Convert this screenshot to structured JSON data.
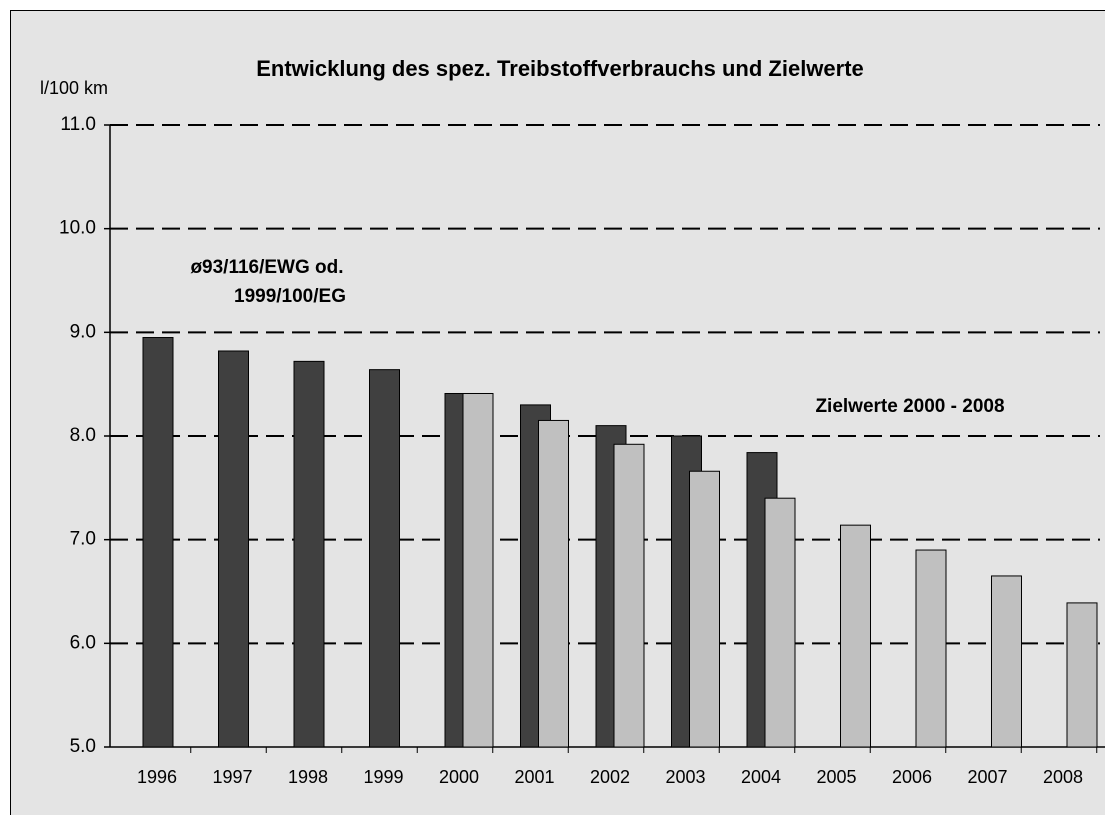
{
  "chart_data": {
    "type": "bar",
    "title": "Entwicklung des spez. Treibstoffverbrauchs und Zielwerte",
    "y_label": "l/100 km",
    "annotations": [
      "ø93/116/EWG od.",
      "1999/100/EG",
      "Zielwerte 2000 - 2008"
    ],
    "categories": [
      "1996",
      "1997",
      "1998",
      "1999",
      "2000",
      "2001",
      "2002",
      "2003",
      "2004",
      "2005",
      "2006",
      "2007",
      "2008"
    ],
    "series": [
      {
        "color": "#404040",
        "values": [
          8.95,
          8.82,
          8.72,
          8.64,
          8.41,
          8.3,
          8.1,
          8.0,
          7.84,
          null,
          null,
          null,
          null
        ]
      },
      {
        "color": "#c0c0c0",
        "values": [
          null,
          null,
          null,
          null,
          8.41,
          8.15,
          7.92,
          7.66,
          7.4,
          7.14,
          6.9,
          6.65,
          6.39
        ]
      }
    ],
    "ylim": [
      5,
      11
    ],
    "yticks": [
      {
        "value": 5,
        "label": "5.0"
      },
      {
        "value": 6,
        "label": "6.0"
      },
      {
        "value": 7,
        "label": "7.0"
      },
      {
        "value": 8,
        "label": "8.0"
      },
      {
        "value": 9,
        "label": "9.0"
      },
      {
        "value": 10,
        "label": "10.0"
      },
      {
        "value": 11,
        "label": "11.0"
      }
    ],
    "grid": true
  }
}
